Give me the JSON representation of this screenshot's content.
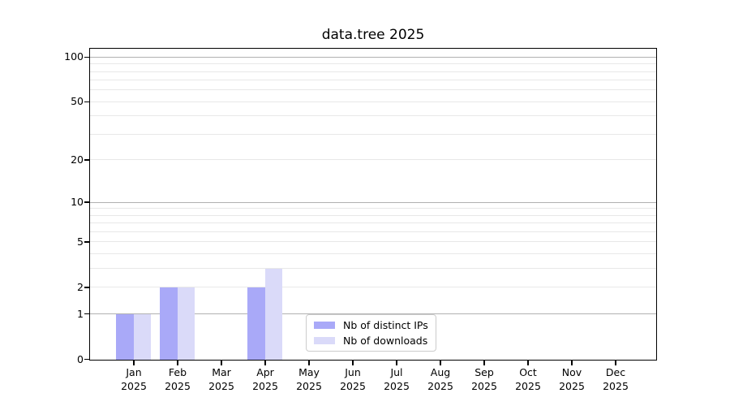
{
  "title": "data.tree 2025",
  "chart_data": {
    "type": "bar",
    "title": "data.tree 2025",
    "categories": [
      "Jan 2025",
      "Feb 2025",
      "Mar 2025",
      "Apr 2025",
      "May 2025",
      "Jun 2025",
      "Jul 2025",
      "Aug 2025",
      "Sep 2025",
      "Oct 2025",
      "Nov 2025",
      "Dec 2025"
    ],
    "month_labels": [
      "Jan",
      "Feb",
      "Mar",
      "Apr",
      "May",
      "Jun",
      "Jul",
      "Aug",
      "Sep",
      "Oct",
      "Nov",
      "Dec"
    ],
    "year_label": "2025",
    "series": [
      {
        "name": "Nb of distinct IPs",
        "color": "#a9a9f8",
        "values": [
          1,
          2,
          0,
          2,
          0,
          0,
          0,
          0,
          0,
          0,
          0,
          0
        ]
      },
      {
        "name": "Nb of downloads",
        "color": "#dadaf9",
        "values": [
          1,
          2,
          0,
          3,
          0,
          0,
          0,
          0,
          0,
          0,
          0,
          0
        ]
      }
    ],
    "yscale": "log1p",
    "ylim": [
      0,
      113
    ],
    "xlabel": "",
    "ylabel": "",
    "y_tick_values": [
      0,
      1,
      2,
      5,
      10,
      20,
      50,
      100
    ],
    "y_major_gridlines": [
      1,
      10,
      100
    ],
    "y_minor_gridlines": [
      2,
      3,
      4,
      5,
      6,
      7,
      8,
      9,
      20,
      30,
      40,
      50,
      60,
      70,
      80,
      90
    ],
    "grid": true,
    "legend": {
      "position": "lower center",
      "entries": [
        "Nb of distinct IPs",
        "Nb of downloads"
      ]
    },
    "colors": {
      "major_grid": "#b1b1b1",
      "minor_grid": "#e8e8e8",
      "spine": "#000000",
      "background": "#ffffff"
    }
  }
}
